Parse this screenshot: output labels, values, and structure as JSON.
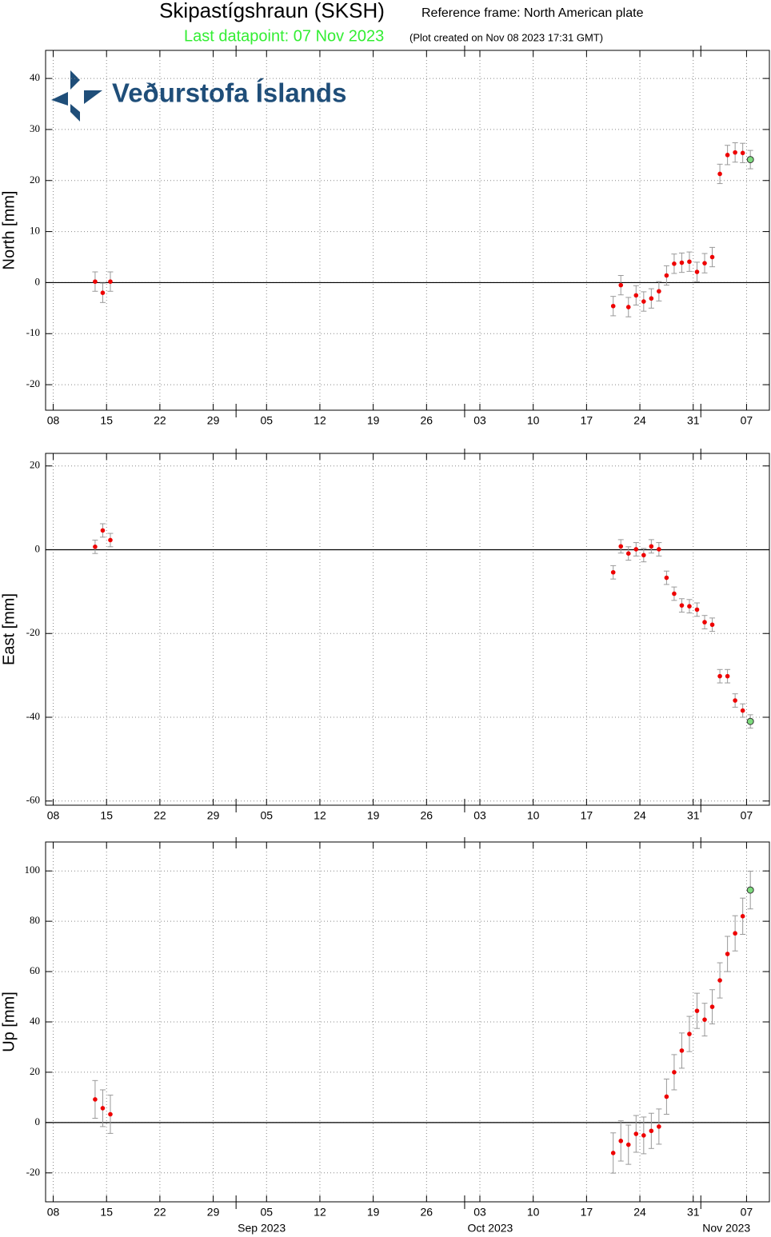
{
  "header": {
    "title": "Skipastígshraun (SKSH)",
    "reference": "Reference frame: North American plate",
    "last_datapoint": "Last datapoint: 07 Nov 2023",
    "created": "(Plot created on Nov 08 2023 17:31 GMT)",
    "logo_text": "Veðurstofa Íslands"
  },
  "chart_data": [
    {
      "type": "scatter",
      "y_label": "North [mm]",
      "x": [
        "2023-08-13",
        "2023-08-14",
        "2023-08-15",
        "2023-10-20",
        "2023-10-21",
        "2023-10-22",
        "2023-10-23",
        "2023-10-24",
        "2023-10-25",
        "2023-10-26",
        "2023-10-27",
        "2023-10-28",
        "2023-10-29",
        "2023-10-30",
        "2023-10-31",
        "2023-11-01",
        "2023-11-02",
        "2023-11-03",
        "2023-11-04",
        "2023-11-05",
        "2023-11-06",
        "2023-11-07"
      ],
      "values": [
        0.2,
        -2.0,
        0.2,
        -4.6,
        -0.5,
        -4.8,
        -2.5,
        -3.7,
        -3.1,
        -1.7,
        1.4,
        3.7,
        3.9,
        4.1,
        2.1,
        3.8,
        5.0,
        21.3,
        25.0,
        25.5,
        25.4,
        24.1
      ],
      "errors": [
        1.9,
        1.9,
        1.9,
        1.9,
        1.9,
        1.9,
        1.9,
        1.9,
        1.9,
        1.9,
        1.9,
        1.9,
        1.9,
        1.9,
        1.9,
        1.9,
        1.9,
        1.9,
        1.9,
        1.9,
        1.9,
        1.8
      ],
      "color": "#ee0000",
      "last_color": "#7ddb7d",
      "grid": true,
      "zero_line": true,
      "xlim": [
        "2023-08-07",
        "2023-11-10"
      ],
      "xticks": [
        {
          "value": "2023-08-08",
          "label": "08"
        },
        {
          "value": "2023-08-15",
          "label": "15"
        },
        {
          "value": "2023-08-22",
          "label": "22"
        },
        {
          "value": "2023-08-29",
          "label": "29"
        },
        {
          "value": "2023-09-05",
          "label": "05"
        },
        {
          "value": "2023-09-12",
          "label": "12"
        },
        {
          "value": "2023-09-19",
          "label": "19"
        },
        {
          "value": "2023-09-26",
          "label": "26"
        },
        {
          "value": "2023-10-03",
          "label": "03"
        },
        {
          "value": "2023-10-10",
          "label": "10"
        },
        {
          "value": "2023-10-17",
          "label": "17"
        },
        {
          "value": "2023-10-24",
          "label": "24"
        },
        {
          "value": "2023-10-31",
          "label": "31"
        },
        {
          "value": "2023-11-07",
          "label": "07"
        }
      ],
      "month_ticks": [
        "2023-09-01",
        "2023-10-01",
        "2023-11-01"
      ],
      "ylim": [
        -25,
        45.5
      ],
      "yticks": [
        -20,
        -10,
        0,
        10,
        20,
        30,
        40
      ]
    },
    {
      "type": "scatter",
      "y_label": "East [mm]",
      "x": [
        "2023-08-13",
        "2023-08-14",
        "2023-08-15",
        "2023-10-20",
        "2023-10-21",
        "2023-10-22",
        "2023-10-23",
        "2023-10-24",
        "2023-10-25",
        "2023-10-26",
        "2023-10-27",
        "2023-10-28",
        "2023-10-29",
        "2023-10-30",
        "2023-10-31",
        "2023-11-01",
        "2023-11-02",
        "2023-11-03",
        "2023-11-04",
        "2023-11-05",
        "2023-11-06",
        "2023-11-07"
      ],
      "values": [
        0.7,
        4.6,
        2.3,
        -5.4,
        0.8,
        -0.9,
        0.1,
        -1.3,
        0.8,
        0.1,
        -6.7,
        -10.5,
        -13.3,
        -13.5,
        -14.3,
        -17.3,
        -17.9,
        -30.2,
        -30.2,
        -36.0,
        -38.4,
        -41.0
      ],
      "errors": [
        1.6,
        1.6,
        1.6,
        1.6,
        1.6,
        1.6,
        1.6,
        1.6,
        1.6,
        1.6,
        1.6,
        1.6,
        1.6,
        1.6,
        1.6,
        1.6,
        1.6,
        1.6,
        1.6,
        1.6,
        1.6,
        1.6
      ],
      "color": "#ee0000",
      "last_color": "#7ddb7d",
      "grid": true,
      "zero_line": true,
      "xlim": [
        "2023-08-07",
        "2023-11-10"
      ],
      "xticks": [
        {
          "value": "2023-08-08",
          "label": "08"
        },
        {
          "value": "2023-08-15",
          "label": "15"
        },
        {
          "value": "2023-08-22",
          "label": "22"
        },
        {
          "value": "2023-08-29",
          "label": "29"
        },
        {
          "value": "2023-09-05",
          "label": "05"
        },
        {
          "value": "2023-09-12",
          "label": "12"
        },
        {
          "value": "2023-09-19",
          "label": "19"
        },
        {
          "value": "2023-09-26",
          "label": "26"
        },
        {
          "value": "2023-10-03",
          "label": "03"
        },
        {
          "value": "2023-10-10",
          "label": "10"
        },
        {
          "value": "2023-10-17",
          "label": "17"
        },
        {
          "value": "2023-10-24",
          "label": "24"
        },
        {
          "value": "2023-10-31",
          "label": "31"
        },
        {
          "value": "2023-11-07",
          "label": "07"
        }
      ],
      "month_ticks": [
        "2023-09-01",
        "2023-10-01",
        "2023-11-01"
      ],
      "ylim": [
        -61,
        23
      ],
      "yticks": [
        -60,
        -40,
        -20,
        0,
        20
      ]
    },
    {
      "type": "scatter",
      "y_label": "Up [mm]",
      "x": [
        "2023-08-13",
        "2023-08-14",
        "2023-08-15",
        "2023-10-20",
        "2023-10-21",
        "2023-10-22",
        "2023-10-23",
        "2023-10-24",
        "2023-10-25",
        "2023-10-26",
        "2023-10-27",
        "2023-10-28",
        "2023-10-29",
        "2023-10-30",
        "2023-10-31",
        "2023-11-01",
        "2023-11-02",
        "2023-11-03",
        "2023-11-04",
        "2023-11-05",
        "2023-11-06",
        "2023-11-07"
      ],
      "values": [
        9.2,
        5.7,
        3.3,
        -12.1,
        -7.3,
        -8.8,
        -4.5,
        -5.1,
        -3.3,
        -1.6,
        10.3,
        20.0,
        28.6,
        35.2,
        44.4,
        40.9,
        46.0,
        56.5,
        67.0,
        75.2,
        82.0,
        92.4
      ],
      "errors": [
        7.5,
        7.3,
        7.6,
        8,
        8,
        7.8,
        7.3,
        7.3,
        7,
        7,
        7,
        7,
        7,
        7,
        7,
        6.5,
        6.8,
        7,
        7,
        7,
        7.2,
        7.5
      ],
      "color": "#ee0000",
      "last_color": "#7ddb7d",
      "grid": true,
      "zero_line": true,
      "xlim": [
        "2023-08-07",
        "2023-11-10"
      ],
      "xticks": [
        {
          "value": "2023-08-08",
          "label": "08"
        },
        {
          "value": "2023-08-15",
          "label": "15"
        },
        {
          "value": "2023-08-22",
          "label": "22"
        },
        {
          "value": "2023-08-29",
          "label": "29"
        },
        {
          "value": "2023-09-05",
          "label": "05"
        },
        {
          "value": "2023-09-12",
          "label": "12"
        },
        {
          "value": "2023-09-19",
          "label": "19"
        },
        {
          "value": "2023-09-26",
          "label": "26"
        },
        {
          "value": "2023-10-03",
          "label": "03"
        },
        {
          "value": "2023-10-10",
          "label": "10"
        },
        {
          "value": "2023-10-17",
          "label": "17"
        },
        {
          "value": "2023-10-24",
          "label": "24"
        },
        {
          "value": "2023-10-31",
          "label": "31"
        },
        {
          "value": "2023-11-07",
          "label": "07"
        }
      ],
      "month_ticks": [
        {
          "value": "2023-09-01",
          "label": "Sep 2023"
        },
        {
          "value": "2023-10-01",
          "label": "Oct 2023"
        },
        {
          "value": "2023-11-01",
          "label": "Nov 2023"
        }
      ],
      "ylim": [
        -31.5,
        111.5
      ],
      "yticks": [
        -20,
        0,
        20,
        40,
        60,
        80,
        100
      ]
    }
  ]
}
